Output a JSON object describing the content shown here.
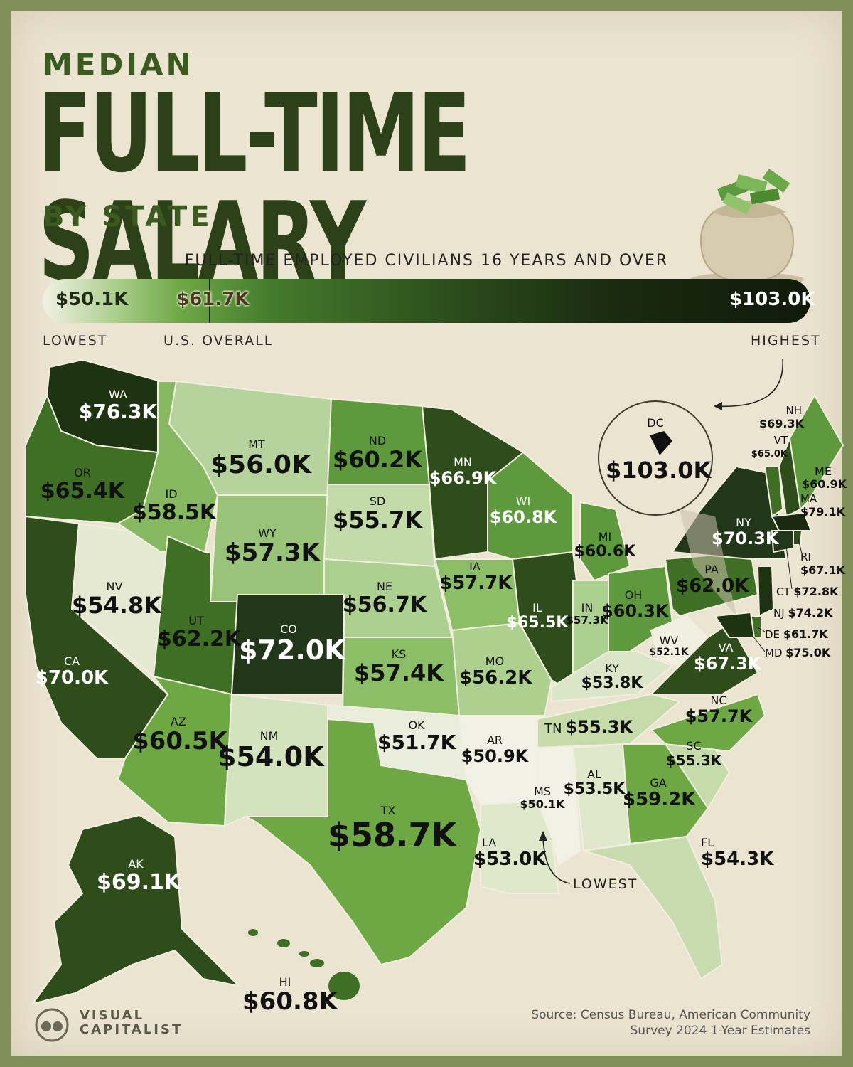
{
  "title": {
    "line1": "MEDIAN",
    "line2": "FULL-TIME SALARY",
    "line3": "BY STATE"
  },
  "subtitle": "FULL-TIME EMPLOYED CIVILIANS 16 YEARS AND OVER",
  "scale": {
    "low_value": "$50.1K",
    "low_label": "LOWEST",
    "mid_value": "$61.7K",
    "mid_label": "U.S. OVERALL",
    "high_value": "$103.0K",
    "high_label": "HIGHEST"
  },
  "colors": {
    "lightest": "#f2f1e5",
    "light": "#b7d39d",
    "mid": "#6ea845",
    "dark": "#3f6e25",
    "darkest": "#1e3312",
    "background": "#ebe4d1"
  },
  "states": {
    "WA": {
      "code": "WA",
      "value": "$76.3K"
    },
    "OR": {
      "code": "OR",
      "value": "$65.4K"
    },
    "CA": {
      "code": "CA",
      "value": "$70.0K"
    },
    "NV": {
      "code": "NV",
      "value": "$54.8K"
    },
    "ID": {
      "code": "ID",
      "value": "$58.5K"
    },
    "MT": {
      "code": "MT",
      "value": "$56.0K"
    },
    "WY": {
      "code": "WY",
      "value": "$57.3K"
    },
    "UT": {
      "code": "UT",
      "value": "$62.2K"
    },
    "AZ": {
      "code": "AZ",
      "value": "$60.5K"
    },
    "CO": {
      "code": "CO",
      "value": "$72.0K"
    },
    "NM": {
      "code": "NM",
      "value": "$54.0K"
    },
    "ND": {
      "code": "ND",
      "value": "$60.2K"
    },
    "SD": {
      "code": "SD",
      "value": "$55.7K"
    },
    "NE": {
      "code": "NE",
      "value": "$56.7K"
    },
    "KS": {
      "code": "KS",
      "value": "$57.4K"
    },
    "OK": {
      "code": "OK",
      "value": "$51.7K"
    },
    "TX": {
      "code": "TX",
      "value": "$58.7K"
    },
    "MN": {
      "code": "MN",
      "value": "$66.9K"
    },
    "IA": {
      "code": "IA",
      "value": "$57.7K"
    },
    "MO": {
      "code": "MO",
      "value": "$56.2K"
    },
    "AR": {
      "code": "AR",
      "value": "$50.9K"
    },
    "LA": {
      "code": "LA",
      "value": "$53.0K"
    },
    "WI": {
      "code": "WI",
      "value": "$60.8K"
    },
    "IL": {
      "code": "IL",
      "value": "$65.5K"
    },
    "MI": {
      "code": "MI",
      "value": "$60.6K"
    },
    "IN": {
      "code": "IN",
      "value": "$57.3K"
    },
    "OH": {
      "code": "OH",
      "value": "$60.3K"
    },
    "KY": {
      "code": "KY",
      "value": "$53.8K"
    },
    "TN": {
      "code": "TN",
      "value": "$55.3K"
    },
    "MS": {
      "code": "MS",
      "value": "$50.1K"
    },
    "AL": {
      "code": "AL",
      "value": "$53.5K"
    },
    "GA": {
      "code": "GA",
      "value": "$59.2K"
    },
    "FL": {
      "code": "FL",
      "value": "$54.3K"
    },
    "SC": {
      "code": "SC",
      "value": "$55.3K"
    },
    "NC": {
      "code": "NC",
      "value": "$57.7K"
    },
    "VA": {
      "code": "VA",
      "value": "$67.3K"
    },
    "WV": {
      "code": "WV",
      "value": "$52.1K"
    },
    "PA": {
      "code": "PA",
      "value": "$62.0K"
    },
    "NY": {
      "code": "NY",
      "value": "$70.3K"
    },
    "ME": {
      "code": "ME",
      "value": "$60.9K"
    },
    "NH": {
      "code": "NH",
      "value": "$69.3K"
    },
    "VT": {
      "code": "VT",
      "value": "$65.0K"
    },
    "MA": {
      "code": "MA",
      "value": "$79.1K"
    },
    "RI": {
      "code": "RI",
      "value": "$67.1K"
    },
    "CT": {
      "code": "CT",
      "value": "$72.8K"
    },
    "NJ": {
      "code": "NJ",
      "value": "$74.2K"
    },
    "DE": {
      "code": "DE",
      "value": "$61.7K"
    },
    "MD": {
      "code": "MD",
      "value": "$75.0K"
    },
    "DC": {
      "code": "DC",
      "value": "$103.0K"
    },
    "AK": {
      "code": "AK",
      "value": "$69.1K"
    },
    "HI": {
      "code": "HI",
      "value": "$60.8K"
    }
  },
  "annotations": {
    "lowest_note": "LOWEST"
  },
  "footer": {
    "logo_line1": "VISUAL",
    "logo_line2": "CAPITALIST",
    "source_line1": "Source: Census Bureau, American Community",
    "source_line2": "Survey 2024 1-Year Estimates"
  }
}
